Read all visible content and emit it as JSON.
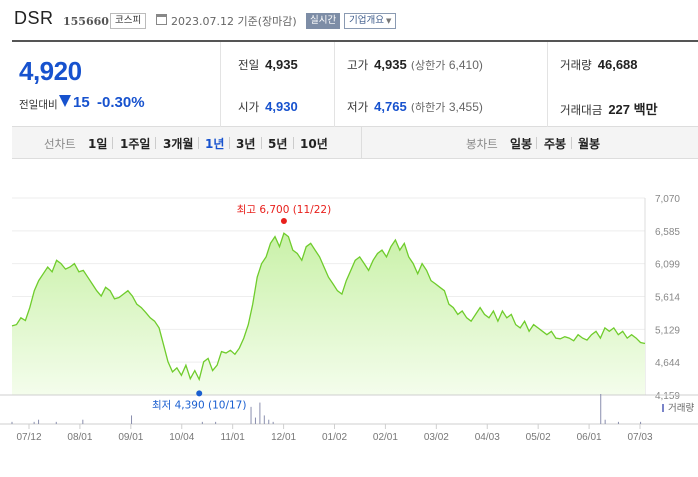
{
  "header": {
    "stock_name": "DSR",
    "stock_code": "155660",
    "market": "코스피",
    "date_text": "2023.07.12 기준(장마감)",
    "live_label": "실시간",
    "company_info_label": "기업개요"
  },
  "summary": {
    "price": "4,920",
    "change_label": "전일대비",
    "change_value": "15",
    "change_pct": "-0.30%",
    "prev_label": "전일",
    "prev_value": "4,935",
    "open_label": "시가",
    "open_value": "4,930",
    "high_label": "고가",
    "high_value": "4,935",
    "upper_limit_label": "(상한가",
    "upper_limit_value": "6,410)",
    "low_label": "저가",
    "low_value": "4,765",
    "lower_limit_label": "(하한가",
    "lower_limit_value": "3,455)",
    "volume_label": "거래량",
    "volume_value": "46,688",
    "amount_label": "거래대금",
    "amount_value": "227 백만"
  },
  "line_tabs": {
    "label": "선차트",
    "items": [
      "1일",
      "1주일",
      "3개월",
      "1년",
      "3년",
      "5년",
      "10년"
    ],
    "selected": "1년"
  },
  "candle_tabs": {
    "label": "봉차트",
    "items": [
      "일봉",
      "주봉",
      "월봉"
    ]
  },
  "colors": {
    "price_down": "#1752ce",
    "line": "#6fcc2c",
    "fill_top": "#c9f1a8",
    "high_marker": "#e8201c",
    "low_marker": "#1a5fd0"
  },
  "chart_data": {
    "type": "area",
    "y_ticks": [
      "7,070",
      "6,585",
      "6,099",
      "5,614",
      "5,129",
      "4,644",
      "4,159"
    ],
    "ylim": [
      4159,
      7070
    ],
    "x_ticks": [
      "07/12",
      "08/01",
      "09/01",
      "10/04",
      "11/01",
      "12/01",
      "01/02",
      "02/01",
      "03/02",
      "04/03",
      "05/02",
      "06/01",
      "07/03"
    ],
    "high_annotation": "최고 6,700 (11/22)",
    "low_annotation": "최저 4,390 (10/17)",
    "high_value": 6700,
    "low_value": 4390,
    "volume_label": "거래량",
    "series": [
      {
        "values": [
          5180,
          5200,
          5300,
          5260,
          5450,
          5700,
          5850,
          5950,
          6050,
          5980,
          6150,
          6100,
          6020,
          6050,
          6100,
          5980,
          6000,
          5900,
          5800,
          5700,
          5620,
          5750,
          5700,
          5580,
          5600,
          5650,
          5700,
          5620,
          5500,
          5450,
          5380,
          5300,
          5250,
          5150,
          4900,
          4650,
          4500,
          4560,
          4450,
          4600,
          4400,
          4520,
          4390,
          4650,
          4700,
          4520,
          4600,
          4800,
          4780,
          4820,
          4760,
          4850,
          5000,
          5200,
          5500,
          5900,
          6100,
          6200,
          6400,
          6500,
          6350,
          6550,
          6500,
          6300,
          6250,
          6150,
          6350,
          6400,
          6300,
          6200,
          6050,
          5900,
          5800,
          5700,
          5650,
          5850,
          6000,
          6150,
          6200,
          6100,
          6000,
          6150,
          6250,
          6300,
          6200,
          6350,
          6450,
          6300,
          6400,
          6200,
          6100,
          5950,
          6100,
          6000,
          5850,
          5800,
          5750,
          5700,
          5500,
          5450,
          5350,
          5400,
          5300,
          5250,
          5350,
          5450,
          5350,
          5300,
          5400,
          5250,
          5400,
          5300,
          5350,
          5200,
          5150,
          5250,
          5100,
          5200,
          5150,
          5100,
          5050,
          5100,
          5000,
          4990,
          5020,
          5000,
          4960,
          5050,
          5000,
          4970,
          5050,
          5100,
          5000,
          5150,
          5100,
          5150,
          5050,
          5100,
          5000,
          5050,
          5000,
          4935,
          4920
        ]
      }
    ],
    "volume": [
      1,
      0,
      0,
      0,
      0,
      1,
      2,
      0,
      0,
      0,
      1,
      0,
      0,
      0,
      0,
      0,
      2,
      0,
      0,
      0,
      0,
      0,
      0,
      0,
      0,
      0,
      0,
      4,
      0,
      0,
      0,
      0,
      0,
      0,
      0,
      0,
      0,
      0,
      0,
      0,
      0,
      0,
      0,
      1,
      0,
      0,
      1,
      0,
      0,
      0,
      0,
      0,
      0,
      0,
      8,
      3,
      10,
      4,
      2,
      1,
      0,
      0,
      0,
      0,
      0,
      0,
      0,
      0,
      0,
      0,
      0,
      0,
      0,
      0,
      0,
      0,
      0,
      0,
      0,
      0,
      0,
      0,
      0,
      0,
      0,
      0,
      0,
      0,
      0,
      0,
      0,
      0,
      0,
      0,
      0,
      0,
      0,
      0,
      0,
      0,
      0,
      0,
      0,
      0,
      0,
      0,
      0,
      0,
      0,
      0,
      0,
      0,
      0,
      0,
      0,
      0,
      0,
      0,
      0,
      0,
      0,
      0,
      0,
      0,
      0,
      0,
      0,
      0,
      0,
      0,
      0,
      0,
      0,
      14,
      2,
      0,
      0,
      1,
      0,
      0,
      0,
      0,
      1,
      0
    ]
  }
}
